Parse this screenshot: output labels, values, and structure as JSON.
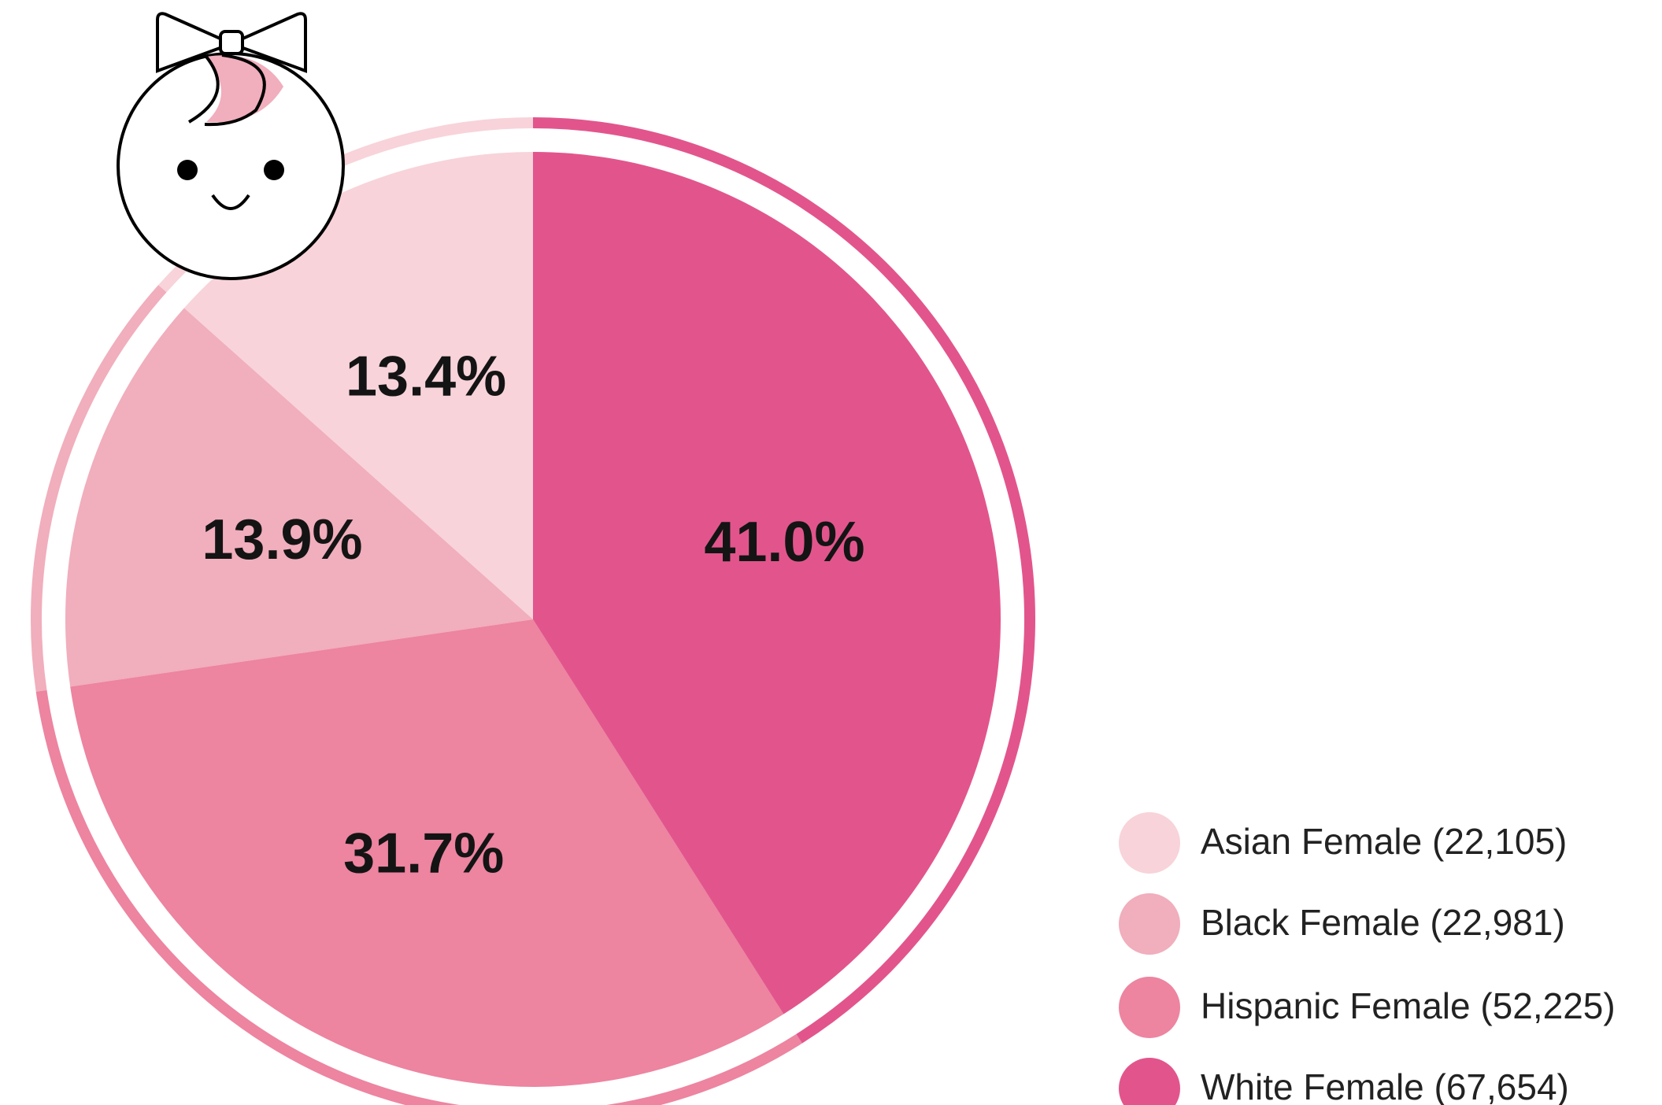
{
  "chart_data": {
    "type": "pie",
    "categories": [
      "Asian Female (22,105)",
      "Black Female (22,981)",
      "Hispanic Female (52,225)",
      "White Female (67,654)"
    ],
    "values": [
      13.4,
      13.9,
      31.7,
      41.0
    ],
    "value_labels": [
      "13.4%",
      "13.9%",
      "31.7%",
      "41.0%"
    ],
    "colors": [
      "#f8d3da",
      "#f1aebc",
      "#ed84a0",
      "#e2558c"
    ],
    "legend": "bottom-right"
  }
}
